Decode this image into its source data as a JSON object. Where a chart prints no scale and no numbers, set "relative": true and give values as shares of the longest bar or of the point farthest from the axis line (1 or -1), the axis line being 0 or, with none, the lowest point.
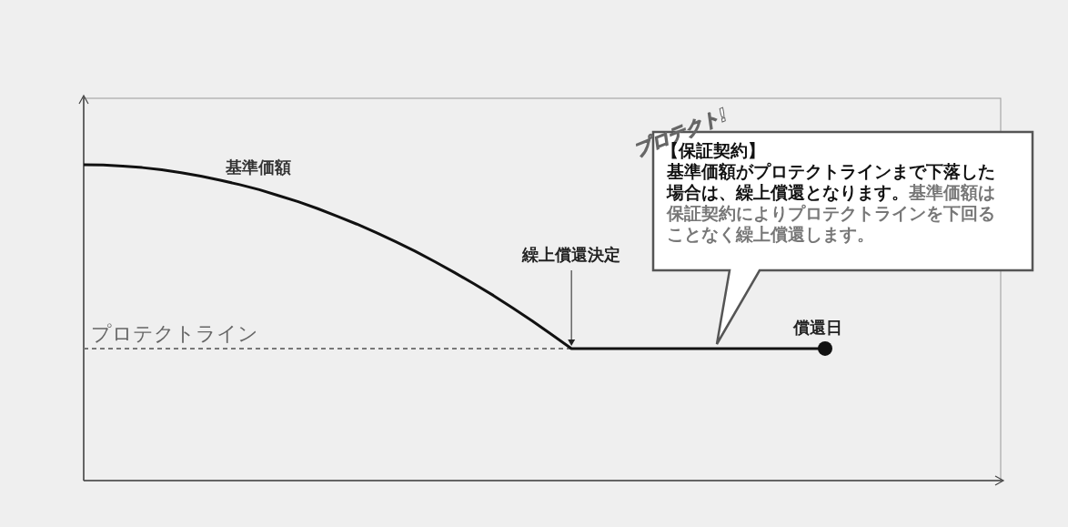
{
  "chart_data": {
    "type": "line",
    "relative": true,
    "marker": "none",
    "categories": [
      null,
      null,
      null,
      null,
      null,
      null,
      null,
      null,
      null,
      null,
      null,
      null,
      null,
      null,
      null,
      null,
      null,
      null,
      null,
      null,
      null,
      null,
      null,
      null,
      null,
      null,
      null,
      null,
      null,
      null,
      null,
      null,
      null,
      null,
      null,
      null,
      null,
      null,
      null,
      null,
      null,
      null,
      null,
      null,
      null,
      null,
      null,
      null
    ],
    "series": [
      {
        "name": "基準価額",
        "color": "#111111",
        "line_style": "solid",
        "values": [
          1,
          0.999,
          0.996,
          0.991,
          0.984,
          0.975,
          0.964,
          0.951,
          0.937,
          0.921,
          0.902,
          0.883,
          0.861,
          0.837,
          0.812,
          0.785,
          0.756,
          0.726,
          0.693,
          0.659,
          0.623,
          0.586,
          0.546,
          0.505,
          0.462,
          0.418,
          0.418,
          0.418,
          0.418,
          0.418,
          0.418,
          0.418,
          0.418,
          0.418,
          0.418,
          0.418,
          0.418,
          0.418,
          0.418,
          null,
          null,
          null,
          null,
          null,
          null,
          null,
          null,
          null
        ]
      },
      {
        "name": "プロテクトライン",
        "color": "#777777",
        "line_style": "dashed",
        "values": [
          0.418,
          0.418,
          0.418,
          0.418,
          0.418,
          0.418,
          0.418,
          0.418,
          0.418,
          0.418,
          0.418,
          0.418,
          0.418,
          0.418,
          0.418,
          0.418,
          0.418,
          0.418,
          0.418,
          0.418,
          0.418,
          0.418,
          0.418,
          0.418,
          0.418,
          0.418,
          null,
          null,
          null,
          null,
          null,
          null,
          null,
          null,
          null,
          null,
          null,
          null,
          null,
          null,
          null,
          null,
          null,
          null,
          null,
          null,
          null,
          null
        ]
      }
    ],
    "annotations": [
      {
        "text": "繰上償還決定",
        "y": 0.418
      },
      {
        "text": "償還日",
        "y": 0.418
      },
      "プロテクト!",
      "【保証契約】",
      "基準価額がプロテクトラインまで下落した場合は、繰上償還となります。",
      "基準価額は保証契約によりプロテクトラインを下回ることなく繰上償還します。"
    ]
  }
}
